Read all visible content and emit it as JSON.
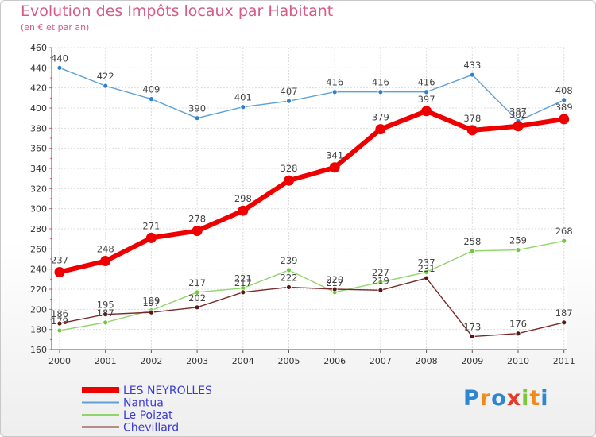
{
  "chart_data": {
    "type": "line",
    "title": "Evolution des Impôts locaux par Habitant",
    "subtitle": "(en € et par an)",
    "categories": [
      "2000",
      "2001",
      "2002",
      "2003",
      "2004",
      "2005",
      "2006",
      "2007",
      "2008",
      "2009",
      "2010",
      "2011"
    ],
    "yticks": [
      160,
      180,
      200,
      220,
      240,
      260,
      280,
      300,
      320,
      340,
      360,
      380,
      400,
      420,
      440,
      460
    ],
    "ylim": [
      160,
      460
    ],
    "grid": true,
    "series": [
      {
        "name": "Nantua",
        "values": [
          440,
          422,
          409,
          390,
          401,
          407,
          416,
          416,
          416,
          433,
          387,
          408
        ],
        "color": "#5ea0d8",
        "marker": "#2f7fd0",
        "width": 1.4,
        "radius": 3
      },
      {
        "name": "Le Poizat",
        "values": [
          179,
          187,
          199,
          217,
          221,
          239,
          217,
          227,
          237,
          258,
          259,
          268
        ],
        "color": "#8fd66a",
        "marker": "#72c83c",
        "width": 1.4,
        "radius": 3
      },
      {
        "name": "Chevillard",
        "values": [
          186,
          195,
          197,
          202,
          217,
          222,
          220,
          219,
          231,
          173,
          176,
          187
        ],
        "color": "#7a2a2a",
        "marker": "#5a1515",
        "width": 1.4,
        "radius": 3
      },
      {
        "name": "LES NEYROLLES",
        "values": [
          237,
          248,
          271,
          278,
          298,
          328,
          341,
          379,
          397,
          378,
          382,
          389
        ],
        "color": "#ee0000",
        "marker": "#ee0000",
        "width": 6,
        "radius": 6.5
      }
    ],
    "legend": [
      "LES NEYROLLES",
      "Nantua",
      "Le Poizat",
      "Chevillard"
    ],
    "legend_position": "bottom-left"
  },
  "logo": {
    "letters": [
      "P",
      "r",
      "o",
      "x",
      "i",
      "t",
      "i"
    ],
    "colors": [
      "#2f86d0",
      "#f08a1a",
      "#2f86d0",
      "#e33a2a",
      "#7cc63c",
      "#f08a1a",
      "#2f86d0"
    ]
  }
}
